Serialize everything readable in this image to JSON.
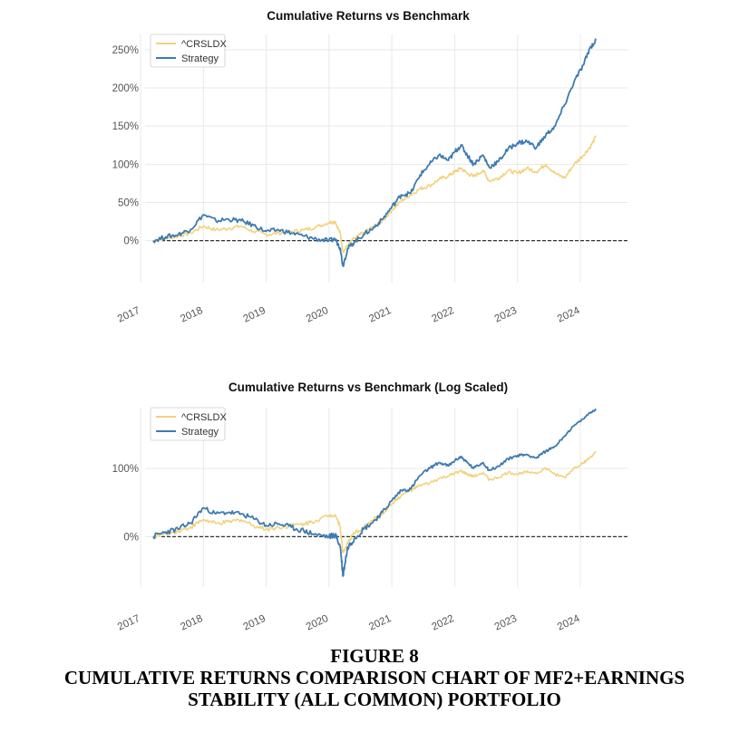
{
  "colors": {
    "benchmark": "#F2D27E",
    "strategy": "#3E7BB0",
    "zero_line": "#333333",
    "grid": "#E8E8E8"
  },
  "figure": {
    "label": "FIGURE 8",
    "caption_line1": "CUMULATIVE RETURNS COMPARISON CHART OF MF2+EARNINGS",
    "caption_line2": "STABILITY (ALL COMMON) PORTFOLIO"
  },
  "chart_data": [
    {
      "type": "line",
      "title": "Cumulative Returns vs Benchmark",
      "xlabel": "",
      "ylabel": "",
      "y_scale": "linear",
      "x_ticks": [
        "2017",
        "2018",
        "2019",
        "2020",
        "2021",
        "2022",
        "2023",
        "2024"
      ],
      "y_ticks": [
        "0%",
        "50%",
        "100%",
        "150%",
        "200%",
        "250%"
      ],
      "ylim": [
        -55,
        270
      ],
      "xlim": [
        2016.6,
        2024.5
      ],
      "grid": true,
      "legend_position": "top-left",
      "reference_line": 0,
      "series": [
        {
          "name": "^CRSLDX",
          "x": [
            2017.2,
            2017.4,
            2017.6,
            2017.8,
            2018.0,
            2018.2,
            2018.4,
            2018.6,
            2018.8,
            2019.0,
            2019.2,
            2019.4,
            2019.6,
            2019.8,
            2020.0,
            2020.1,
            2020.18,
            2020.22,
            2020.3,
            2020.4,
            2020.55,
            2020.7,
            2020.85,
            2021.0,
            2021.15,
            2021.3,
            2021.45,
            2021.6,
            2021.75,
            2021.9,
            2022.0,
            2022.1,
            2022.2,
            2022.3,
            2022.45,
            2022.55,
            2022.7,
            2022.85,
            2023.0,
            2023.15,
            2023.3,
            2023.45,
            2023.6,
            2023.75,
            2023.9,
            2024.05,
            2024.15,
            2024.25
          ],
          "values": [
            0,
            3,
            6,
            10,
            19,
            14,
            16,
            19,
            12,
            8,
            10,
            12,
            14,
            18,
            24,
            25,
            9,
            -15,
            -6,
            3,
            10,
            18,
            26,
            40,
            52,
            60,
            68,
            72,
            80,
            85,
            90,
            95,
            88,
            84,
            92,
            78,
            82,
            92,
            88,
            95,
            90,
            100,
            88,
            82,
            100,
            112,
            122,
            136
          ]
        },
        {
          "name": "Strategy",
          "x": [
            2017.2,
            2017.4,
            2017.6,
            2017.8,
            2018.0,
            2018.2,
            2018.4,
            2018.6,
            2018.8,
            2019.0,
            2019.2,
            2019.4,
            2019.6,
            2019.8,
            2020.0,
            2020.1,
            2020.18,
            2020.22,
            2020.3,
            2020.4,
            2020.55,
            2020.7,
            2020.85,
            2021.0,
            2021.15,
            2021.3,
            2021.45,
            2021.6,
            2021.75,
            2021.9,
            2022.0,
            2022.1,
            2022.2,
            2022.3,
            2022.45,
            2022.55,
            2022.7,
            2022.85,
            2023.0,
            2023.15,
            2023.3,
            2023.45,
            2023.6,
            2023.75,
            2023.9,
            2024.05,
            2024.15,
            2024.25
          ],
          "values": [
            0,
            5,
            8,
            15,
            34,
            26,
            28,
            26,
            20,
            12,
            14,
            10,
            6,
            2,
            0,
            2,
            -10,
            -33,
            -10,
            -2,
            8,
            16,
            28,
            44,
            60,
            62,
            86,
            100,
            112,
            105,
            116,
            125,
            112,
            100,
            112,
            96,
            104,
            120,
            128,
            130,
            122,
            138,
            150,
            178,
            208,
            230,
            252,
            262
          ]
        }
      ]
    },
    {
      "type": "line",
      "title": "Cumulative Returns vs Benchmark (Log Scaled)",
      "xlabel": "",
      "ylabel": "",
      "y_scale": "log",
      "x_ticks": [
        "2017",
        "2018",
        "2019",
        "2020",
        "2021",
        "2022",
        "2023",
        "2024"
      ],
      "y_ticks": [
        "0%",
        "100%"
      ],
      "xlim": [
        2016.6,
        2024.5
      ],
      "grid": true,
      "legend_position": "top-left",
      "reference_line": 0,
      "series": [
        {
          "name": "^CRSLDX",
          "x": [
            2017.2,
            2017.4,
            2017.6,
            2017.8,
            2018.0,
            2018.2,
            2018.4,
            2018.6,
            2018.8,
            2019.0,
            2019.2,
            2019.4,
            2019.6,
            2019.8,
            2020.0,
            2020.1,
            2020.18,
            2020.22,
            2020.3,
            2020.4,
            2020.55,
            2020.7,
            2020.85,
            2021.0,
            2021.15,
            2021.3,
            2021.45,
            2021.6,
            2021.75,
            2021.9,
            2022.0,
            2022.1,
            2022.2,
            2022.3,
            2022.45,
            2022.55,
            2022.7,
            2022.85,
            2023.0,
            2023.15,
            2023.3,
            2023.45,
            2023.6,
            2023.75,
            2023.9,
            2024.05,
            2024.15,
            2024.25
          ],
          "values": [
            0,
            3,
            6,
            10,
            19,
            14,
            16,
            19,
            12,
            8,
            10,
            12,
            14,
            18,
            24,
            25,
            9,
            -15,
            -6,
            3,
            10,
            18,
            26,
            40,
            52,
            60,
            68,
            72,
            80,
            85,
            90,
            95,
            88,
            84,
            92,
            78,
            82,
            92,
            88,
            95,
            90,
            100,
            88,
            82,
            100,
            112,
            122,
            136
          ]
        },
        {
          "name": "Strategy",
          "x": [
            2017.2,
            2017.4,
            2017.6,
            2017.8,
            2018.0,
            2018.2,
            2018.4,
            2018.6,
            2018.8,
            2019.0,
            2019.2,
            2019.4,
            2019.6,
            2019.8,
            2020.0,
            2020.1,
            2020.18,
            2020.22,
            2020.3,
            2020.4,
            2020.55,
            2020.7,
            2020.85,
            2021.0,
            2021.15,
            2021.3,
            2021.45,
            2021.6,
            2021.75,
            2021.9,
            2022.0,
            2022.1,
            2022.2,
            2022.3,
            2022.45,
            2022.55,
            2022.7,
            2022.85,
            2023.0,
            2023.15,
            2023.3,
            2023.45,
            2023.6,
            2023.75,
            2023.9,
            2024.05,
            2024.15,
            2024.25
          ],
          "values": [
            0,
            5,
            8,
            15,
            34,
            26,
            28,
            26,
            20,
            12,
            14,
            10,
            6,
            2,
            0,
            2,
            -10,
            -33,
            -10,
            -2,
            8,
            16,
            28,
            44,
            60,
            62,
            86,
            100,
            112,
            105,
            116,
            125,
            112,
            100,
            112,
            96,
            104,
            120,
            128,
            130,
            122,
            138,
            150,
            178,
            208,
            230,
            252,
            262
          ]
        }
      ]
    }
  ]
}
